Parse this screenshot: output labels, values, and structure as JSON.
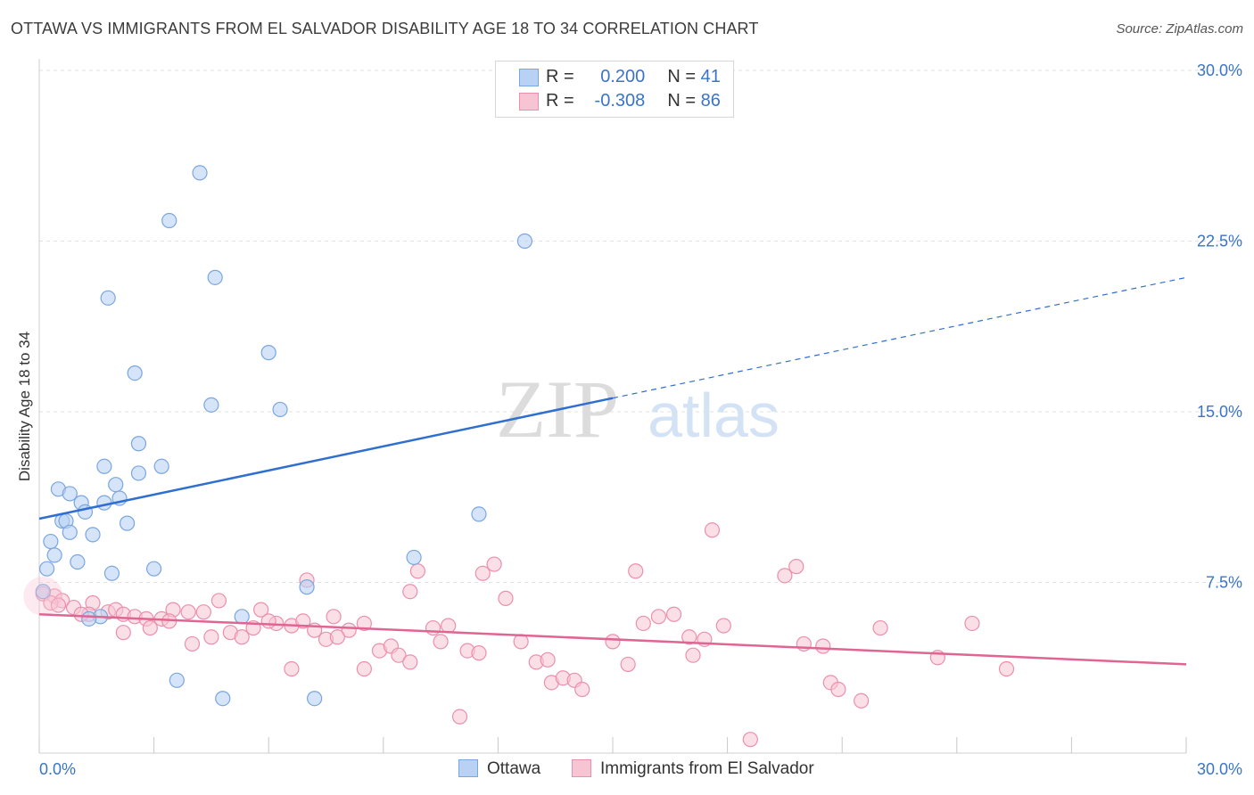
{
  "header": {
    "title": "OTTAWA VS IMMIGRANTS FROM EL SALVADOR DISABILITY AGE 18 TO 34 CORRELATION CHART",
    "source": "Source: ZipAtlas.com"
  },
  "watermark": {
    "part1": "ZIP",
    "part2": "atlas"
  },
  "legend": {
    "r_label": "R =",
    "n_label": "N =",
    "rows": [
      {
        "r": "0.200",
        "n": "41"
      },
      {
        "r": "-0.308",
        "n": "86"
      }
    ]
  },
  "colors": {
    "ottawa_fill": "#b9d2f3",
    "ottawa_stroke": "#7aa6e0",
    "ottawa_line": "#2f6fcf",
    "elsalvador_fill": "#f7c4d4",
    "elsalvador_stroke": "#ec8fac",
    "elsalvador_line": "#e06592",
    "axis_label": "#3a74c9",
    "grid": "#e2e2e2"
  },
  "chart_data": {
    "type": "scatter",
    "title": "OTTAWA VS IMMIGRANTS FROM EL SALVADOR DISABILITY AGE 18 TO 34 CORRELATION CHART",
    "xlabel": "",
    "ylabel": "Disability Age 18 to 34",
    "xlim": [
      0,
      30
    ],
    "ylim": [
      0,
      30
    ],
    "x_tick_labels": [
      "0.0%",
      "30.0%"
    ],
    "y_ticks": [
      7.5,
      15.0,
      22.5,
      30.0
    ],
    "y_tick_labels": [
      "7.5%",
      "15.0%",
      "22.5%",
      "30.0%"
    ],
    "grid": true,
    "legend_position": "top-center",
    "series": [
      {
        "name": "Ottawa",
        "r": 0.2,
        "n": 41,
        "trend": {
          "x": [
            0,
            15
          ],
          "y": [
            10.3,
            15.6
          ],
          "dashed_extension": {
            "x": [
              15,
              30
            ],
            "y": [
              15.6,
              20.9
            ]
          }
        },
        "points": [
          [
            4.2,
            25.5
          ],
          [
            3.4,
            23.4
          ],
          [
            4.6,
            20.9
          ],
          [
            1.8,
            20.0
          ],
          [
            2.5,
            16.7
          ],
          [
            6.0,
            17.6
          ],
          [
            4.5,
            15.3
          ],
          [
            6.3,
            15.1
          ],
          [
            12.7,
            22.5
          ],
          [
            2.6,
            13.6
          ],
          [
            3.2,
            12.6
          ],
          [
            1.7,
            12.6
          ],
          [
            2.6,
            12.3
          ],
          [
            0.5,
            11.6
          ],
          [
            0.8,
            11.4
          ],
          [
            2.0,
            11.8
          ],
          [
            1.1,
            11.0
          ],
          [
            2.1,
            11.2
          ],
          [
            1.7,
            11.0
          ],
          [
            1.2,
            10.6
          ],
          [
            0.6,
            10.2
          ],
          [
            0.7,
            10.2
          ],
          [
            2.3,
            10.1
          ],
          [
            0.8,
            9.7
          ],
          [
            1.4,
            9.6
          ],
          [
            0.3,
            9.3
          ],
          [
            0.4,
            8.7
          ],
          [
            1.0,
            8.4
          ],
          [
            3.0,
            8.1
          ],
          [
            0.2,
            8.1
          ],
          [
            1.9,
            7.9
          ],
          [
            9.8,
            8.6
          ],
          [
            11.5,
            10.5
          ],
          [
            7.0,
            7.3
          ],
          [
            1.6,
            6.0
          ],
          [
            1.3,
            5.9
          ],
          [
            5.3,
            6.0
          ],
          [
            3.6,
            3.2
          ],
          [
            4.8,
            2.4
          ],
          [
            7.2,
            2.4
          ],
          [
            0.1,
            7.1
          ]
        ]
      },
      {
        "name": "Immigrants from El Salvador",
        "r": -0.308,
        "n": 86,
        "trend": {
          "x": [
            0,
            30
          ],
          "y": [
            6.1,
            3.9
          ]
        },
        "points": [
          [
            0.1,
            7.0
          ],
          [
            0.4,
            6.9
          ],
          [
            0.6,
            6.7
          ],
          [
            0.3,
            6.6
          ],
          [
            0.9,
            6.4
          ],
          [
            1.4,
            6.6
          ],
          [
            1.3,
            6.1
          ],
          [
            1.8,
            6.2
          ],
          [
            2.0,
            6.3
          ],
          [
            2.2,
            6.1
          ],
          [
            2.5,
            6.0
          ],
          [
            2.8,
            5.9
          ],
          [
            3.2,
            5.9
          ],
          [
            3.5,
            6.3
          ],
          [
            3.9,
            6.2
          ],
          [
            4.3,
            6.2
          ],
          [
            4.7,
            6.7
          ],
          [
            5.0,
            5.3
          ],
          [
            5.6,
            5.5
          ],
          [
            5.8,
            6.3
          ],
          [
            6.2,
            5.7
          ],
          [
            6.6,
            5.6
          ],
          [
            6.9,
            5.8
          ],
          [
            7.2,
            5.4
          ],
          [
            7.5,
            5.0
          ],
          [
            7.7,
            6.0
          ],
          [
            8.1,
            5.4
          ],
          [
            8.5,
            5.7
          ],
          [
            8.9,
            4.5
          ],
          [
            9.2,
            4.7
          ],
          [
            9.4,
            4.3
          ],
          [
            9.7,
            7.1
          ],
          [
            9.9,
            8.0
          ],
          [
            10.3,
            5.5
          ],
          [
            10.5,
            4.9
          ],
          [
            10.7,
            5.6
          ],
          [
            11.2,
            4.5
          ],
          [
            11.5,
            4.4
          ],
          [
            11.6,
            7.9
          ],
          [
            11.9,
            8.3
          ],
          [
            12.2,
            6.8
          ],
          [
            12.6,
            4.9
          ],
          [
            13.0,
            4.0
          ],
          [
            13.4,
            3.1
          ],
          [
            13.7,
            3.3
          ],
          [
            14.0,
            3.2
          ],
          [
            14.2,
            2.8
          ],
          [
            15.0,
            4.9
          ],
          [
            15.4,
            3.9
          ],
          [
            15.6,
            8.0
          ],
          [
            15.8,
            5.7
          ],
          [
            16.2,
            6.0
          ],
          [
            16.6,
            6.1
          ],
          [
            17.0,
            5.1
          ],
          [
            17.1,
            4.3
          ],
          [
            17.4,
            5.0
          ],
          [
            17.6,
            9.8
          ],
          [
            17.9,
            5.6
          ],
          [
            18.6,
            0.6
          ],
          [
            19.5,
            7.8
          ],
          [
            19.8,
            8.2
          ],
          [
            20.0,
            4.8
          ],
          [
            20.5,
            4.7
          ],
          [
            20.7,
            3.1
          ],
          [
            20.9,
            2.8
          ],
          [
            21.5,
            2.3
          ],
          [
            22.0,
            5.5
          ],
          [
            23.5,
            4.2
          ],
          [
            24.4,
            5.7
          ],
          [
            25.3,
            3.7
          ],
          [
            7.0,
            7.6
          ],
          [
            8.5,
            3.7
          ],
          [
            6.6,
            3.7
          ],
          [
            9.7,
            4.0
          ],
          [
            11.0,
            1.6
          ],
          [
            3.4,
            5.8
          ],
          [
            4.5,
            5.1
          ],
          [
            2.2,
            5.3
          ],
          [
            1.1,
            6.1
          ],
          [
            0.5,
            6.5
          ],
          [
            4.0,
            4.8
          ],
          [
            5.3,
            5.1
          ],
          [
            6.0,
            5.8
          ],
          [
            7.8,
            5.1
          ],
          [
            2.9,
            5.5
          ],
          [
            13.3,
            4.1
          ]
        ]
      }
    ]
  },
  "bottom_legend": [
    {
      "label": "Ottawa"
    },
    {
      "label": "Immigrants from El Salvador"
    }
  ]
}
